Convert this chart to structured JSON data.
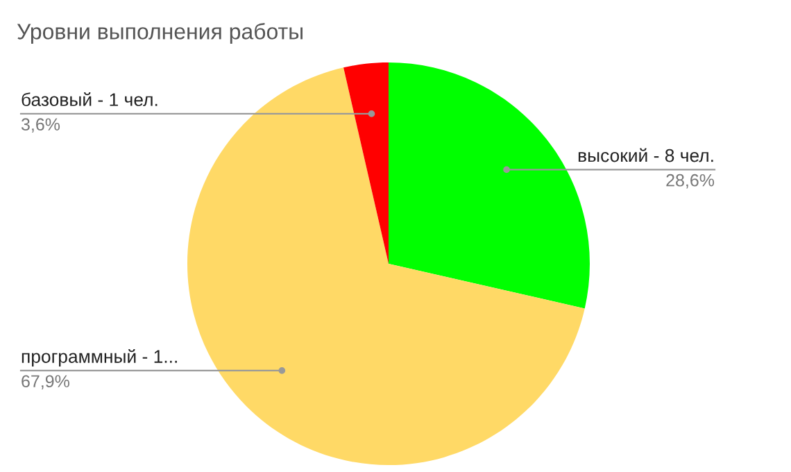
{
  "chart_data": {
    "type": "pie",
    "title": "Уровни выполнения работы",
    "categories": [
      "высокий - 8 чел.",
      "программный - 1...",
      "базовый - 1 чел."
    ],
    "values": [
      28.6,
      67.9,
      3.6
    ],
    "value_labels": [
      "28,6%",
      "67,9%",
      "3,6%"
    ],
    "colors": [
      "#00ff00",
      "#ffd966",
      "#ff0000"
    ],
    "legend": false
  }
}
